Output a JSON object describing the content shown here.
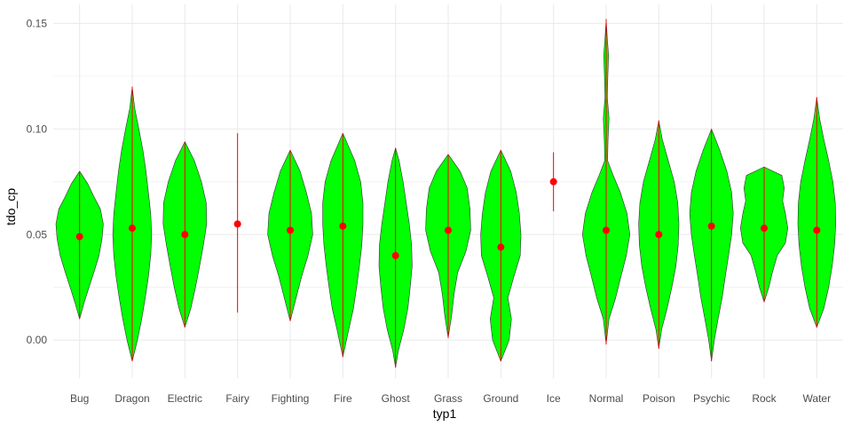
{
  "chart_data": {
    "type": "violin",
    "xlabel": "typ1",
    "ylabel": "tdo_cp",
    "ylim": [
      -0.018,
      0.159
    ],
    "y_ticks": [
      0.0,
      0.05,
      0.1,
      0.15
    ],
    "y_tick_labels": [
      "0.00",
      "0.05",
      "0.10",
      "0.15"
    ],
    "grid": true,
    "legend": "none",
    "colors": {
      "violin_fill": "#00ff00",
      "violin_stroke": "#333333",
      "summary": "#ff0000",
      "grid": "#ebebeb"
    },
    "categories": [
      "Bug",
      "Dragon",
      "Electric",
      "Fairy",
      "Fighting",
      "Fire",
      "Ghost",
      "Grass",
      "Ground",
      "Ice",
      "Normal",
      "Poison",
      "Psychic",
      "Rock",
      "Water"
    ],
    "series": [
      {
        "category": "Bug",
        "mean": 0.049,
        "range": [
          0.01,
          0.08
        ],
        "violin": [
          [
            0.01,
            0.0
          ],
          [
            0.018,
            0.2
          ],
          [
            0.025,
            0.4
          ],
          [
            0.032,
            0.6
          ],
          [
            0.04,
            0.82
          ],
          [
            0.048,
            0.95
          ],
          [
            0.055,
            1.0
          ],
          [
            0.062,
            0.88
          ],
          [
            0.068,
            0.6
          ],
          [
            0.074,
            0.35
          ],
          [
            0.08,
            0.0
          ]
        ]
      },
      {
        "category": "Dragon",
        "mean": 0.053,
        "range": [
          -0.01,
          0.12
        ],
        "violin": [
          [
            -0.01,
            0.0
          ],
          [
            0.0,
            0.22
          ],
          [
            0.01,
            0.4
          ],
          [
            0.02,
            0.55
          ],
          [
            0.03,
            0.68
          ],
          [
            0.04,
            0.78
          ],
          [
            0.05,
            0.82
          ],
          [
            0.06,
            0.78
          ],
          [
            0.07,
            0.68
          ],
          [
            0.08,
            0.58
          ],
          [
            0.09,
            0.45
          ],
          [
            0.1,
            0.28
          ],
          [
            0.11,
            0.1
          ],
          [
            0.12,
            0.0
          ]
        ]
      },
      {
        "category": "Electric",
        "mean": 0.05,
        "range": [
          0.006,
          0.094
        ],
        "violin": [
          [
            0.006,
            0.0
          ],
          [
            0.015,
            0.25
          ],
          [
            0.025,
            0.45
          ],
          [
            0.035,
            0.62
          ],
          [
            0.045,
            0.78
          ],
          [
            0.055,
            0.92
          ],
          [
            0.065,
            0.9
          ],
          [
            0.075,
            0.7
          ],
          [
            0.085,
            0.4
          ],
          [
            0.094,
            0.0
          ]
        ]
      },
      {
        "category": "Fairy",
        "mean": 0.055,
        "range": [
          0.013,
          0.098
        ],
        "violin": []
      },
      {
        "category": "Fighting",
        "mean": 0.052,
        "range": [
          0.009,
          0.09
        ],
        "violin": [
          [
            0.009,
            0.0
          ],
          [
            0.02,
            0.25
          ],
          [
            0.03,
            0.48
          ],
          [
            0.04,
            0.75
          ],
          [
            0.05,
            0.95
          ],
          [
            0.06,
            0.9
          ],
          [
            0.07,
            0.68
          ],
          [
            0.08,
            0.42
          ],
          [
            0.09,
            0.0
          ]
        ]
      },
      {
        "category": "Fire",
        "mean": 0.054,
        "range": [
          -0.008,
          0.098
        ],
        "violin": [
          [
            -0.008,
            0.0
          ],
          [
            0.005,
            0.25
          ],
          [
            0.015,
            0.45
          ],
          [
            0.025,
            0.58
          ],
          [
            0.035,
            0.7
          ],
          [
            0.045,
            0.8
          ],
          [
            0.055,
            0.85
          ],
          [
            0.065,
            0.85
          ],
          [
            0.075,
            0.75
          ],
          [
            0.085,
            0.5
          ],
          [
            0.098,
            0.0
          ]
        ]
      },
      {
        "category": "Ghost",
        "mean": 0.04,
        "range": [
          -0.013,
          0.091
        ],
        "violin": [
          [
            -0.013,
            0.0
          ],
          [
            -0.005,
            0.12
          ],
          [
            0.005,
            0.35
          ],
          [
            0.015,
            0.52
          ],
          [
            0.025,
            0.62
          ],
          [
            0.035,
            0.7
          ],
          [
            0.045,
            0.68
          ],
          [
            0.055,
            0.58
          ],
          [
            0.065,
            0.45
          ],
          [
            0.075,
            0.32
          ],
          [
            0.085,
            0.15
          ],
          [
            0.091,
            0.0
          ]
        ]
      },
      {
        "category": "Grass",
        "mean": 0.052,
        "range": [
          0.001,
          0.088
        ],
        "violin": [
          [
            0.001,
            0.0
          ],
          [
            0.012,
            0.15
          ],
          [
            0.022,
            0.25
          ],
          [
            0.032,
            0.4
          ],
          [
            0.042,
            0.75
          ],
          [
            0.052,
            0.95
          ],
          [
            0.062,
            0.92
          ],
          [
            0.072,
            0.8
          ],
          [
            0.08,
            0.5
          ],
          [
            0.088,
            0.0
          ]
        ]
      },
      {
        "category": "Ground",
        "mean": 0.044,
        "range": [
          -0.01,
          0.09
        ],
        "violin": [
          [
            -0.01,
            0.0
          ],
          [
            0.0,
            0.35
          ],
          [
            0.01,
            0.45
          ],
          [
            0.02,
            0.3
          ],
          [
            0.03,
            0.55
          ],
          [
            0.04,
            0.82
          ],
          [
            0.05,
            0.85
          ],
          [
            0.06,
            0.78
          ],
          [
            0.07,
            0.65
          ],
          [
            0.08,
            0.42
          ],
          [
            0.09,
            0.0
          ]
        ]
      },
      {
        "category": "Ice",
        "mean": 0.075,
        "range": [
          0.061,
          0.089
        ],
        "violin": []
      },
      {
        "category": "Normal",
        "mean": 0.052,
        "range": [
          -0.002,
          0.152
        ],
        "violin": [
          [
            -0.002,
            0.0
          ],
          [
            0.01,
            0.12
          ],
          [
            0.02,
            0.4
          ],
          [
            0.03,
            0.62
          ],
          [
            0.04,
            0.85
          ],
          [
            0.05,
            1.0
          ],
          [
            0.06,
            0.88
          ],
          [
            0.07,
            0.6
          ],
          [
            0.078,
            0.3
          ],
          [
            0.085,
            0.06
          ],
          [
            0.095,
            0.08
          ],
          [
            0.105,
            0.12
          ],
          [
            0.115,
            0.05
          ],
          [
            0.125,
            0.07
          ],
          [
            0.135,
            0.1
          ],
          [
            0.143,
            0.05
          ],
          [
            0.152,
            0.0
          ]
        ]
      },
      {
        "category": "Poison",
        "mean": 0.05,
        "range": [
          -0.004,
          0.104
        ],
        "violin": [
          [
            -0.004,
            0.0
          ],
          [
            0.005,
            0.12
          ],
          [
            0.015,
            0.35
          ],
          [
            0.025,
            0.55
          ],
          [
            0.035,
            0.72
          ],
          [
            0.045,
            0.82
          ],
          [
            0.055,
            0.85
          ],
          [
            0.065,
            0.8
          ],
          [
            0.075,
            0.65
          ],
          [
            0.085,
            0.4
          ],
          [
            0.095,
            0.15
          ],
          [
            0.104,
            0.0
          ]
        ]
      },
      {
        "category": "Psychic",
        "mean": 0.054,
        "range": [
          -0.01,
          0.1
        ],
        "violin": [
          [
            -0.01,
            0.0
          ],
          [
            0.0,
            0.12
          ],
          [
            0.01,
            0.28
          ],
          [
            0.02,
            0.45
          ],
          [
            0.03,
            0.58
          ],
          [
            0.04,
            0.72
          ],
          [
            0.05,
            0.85
          ],
          [
            0.06,
            0.92
          ],
          [
            0.07,
            0.85
          ],
          [
            0.08,
            0.65
          ],
          [
            0.09,
            0.35
          ],
          [
            0.1,
            0.0
          ]
        ]
      },
      {
        "category": "Rock",
        "mean": 0.053,
        "range": [
          0.018,
          0.082
        ],
        "violin": [
          [
            0.018,
            0.0
          ],
          [
            0.025,
            0.2
          ],
          [
            0.032,
            0.35
          ],
          [
            0.04,
            0.55
          ],
          [
            0.046,
            0.9
          ],
          [
            0.053,
            1.0
          ],
          [
            0.06,
            0.9
          ],
          [
            0.066,
            0.78
          ],
          [
            0.072,
            0.85
          ],
          [
            0.078,
            0.75
          ],
          [
            0.082,
            0.0
          ]
        ]
      },
      {
        "category": "Water",
        "mean": 0.052,
        "range": [
          0.006,
          0.115
        ],
        "violin": [
          [
            0.006,
            0.0
          ],
          [
            0.015,
            0.3
          ],
          [
            0.025,
            0.5
          ],
          [
            0.035,
            0.65
          ],
          [
            0.045,
            0.75
          ],
          [
            0.055,
            0.8
          ],
          [
            0.065,
            0.78
          ],
          [
            0.075,
            0.68
          ],
          [
            0.085,
            0.5
          ],
          [
            0.095,
            0.3
          ],
          [
            0.105,
            0.12
          ],
          [
            0.115,
            0.0
          ]
        ]
      }
    ]
  }
}
